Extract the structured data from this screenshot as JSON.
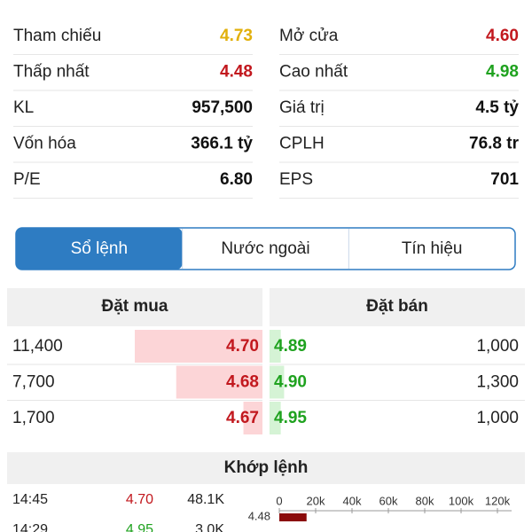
{
  "stats": {
    "left": [
      {
        "label": "Tham chiếu",
        "value": "4.73",
        "tone": "ref"
      },
      {
        "label": "Thấp nhất",
        "value": "4.48",
        "tone": "down"
      },
      {
        "label": "KL",
        "value": "957,500",
        "tone": "plain"
      },
      {
        "label": "Vốn hóa",
        "value": "366.1 tỷ",
        "tone": "plain"
      },
      {
        "label": "P/E",
        "value": "6.80",
        "tone": "plain"
      }
    ],
    "right": [
      {
        "label": "Mở cửa",
        "value": "4.60",
        "tone": "down"
      },
      {
        "label": "Cao nhất",
        "value": "4.98",
        "tone": "up"
      },
      {
        "label": "Giá trị",
        "value": "4.5 tỷ",
        "tone": "plain"
      },
      {
        "label": "CPLH",
        "value": "76.8 tr",
        "tone": "plain"
      },
      {
        "label": "EPS",
        "value": "701",
        "tone": "plain"
      }
    ]
  },
  "tabs": {
    "items": [
      "Sổ lệnh",
      "Nước ngoài",
      "Tín hiệu"
    ],
    "active": 0
  },
  "order_book": {
    "bid_title": "Đặt mua",
    "ask_title": "Đặt bán",
    "bids": [
      {
        "volume": {
          "value": 11400,
          "label": "11,400"
        },
        "price": "4.70"
      },
      {
        "volume": {
          "value": 7700,
          "label": "7,700"
        },
        "price": "4.68"
      },
      {
        "volume": {
          "value": 1700,
          "label": "1,700"
        },
        "price": "4.67"
      }
    ],
    "asks": [
      {
        "price": "4.89",
        "volume": {
          "value": 1000,
          "label": "1,000"
        }
      },
      {
        "price": "4.90",
        "volume": {
          "value": 1300,
          "label": "1,300"
        }
      },
      {
        "price": "4.95",
        "volume": {
          "value": 1000,
          "label": "1,000"
        }
      }
    ]
  },
  "matches": {
    "title": "Khớp lệnh",
    "rows": [
      {
        "time": "14:45",
        "price": "4.70",
        "tone": "down",
        "volume": "48.1K"
      },
      {
        "time": "14:29",
        "price": "4.95",
        "tone": "up",
        "volume": "3.0K"
      }
    ]
  },
  "volume_chart": {
    "type": "bar",
    "categories": [
      "4.48"
    ],
    "values": [
      15000
    ],
    "color": "#8b0b0b",
    "xlim": [
      0,
      120000
    ],
    "xticks": [
      0,
      {
        "value": 20000,
        "label": "20k"
      },
      {
        "value": 40000,
        "label": "40k"
      },
      {
        "value": 60000,
        "label": "60k"
      },
      {
        "value": 80000,
        "label": "80k"
      },
      {
        "value": 100000,
        "label": "100k"
      },
      {
        "value": 120000,
        "label": "120k"
      }
    ]
  }
}
